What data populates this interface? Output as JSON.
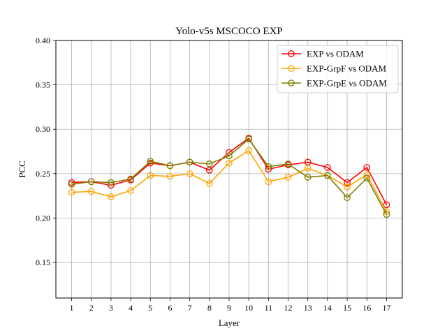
{
  "chart_data": {
    "type": "line",
    "title": "Yolo-v5s MSCOCO EXP",
    "xlabel": "Layer",
    "ylabel": "PCC",
    "x": [
      1,
      2,
      3,
      4,
      5,
      6,
      7,
      8,
      9,
      10,
      11,
      12,
      13,
      14,
      15,
      16,
      17
    ],
    "xlim": [
      0.2,
      17.8
    ],
    "ylim": [
      0.11,
      0.4
    ],
    "yticks": [
      "0.15",
      "0.20",
      "0.25",
      "0.30",
      "0.35",
      "0.40"
    ],
    "xticks": [
      "1",
      "2",
      "3",
      "4",
      "5",
      "6",
      "7",
      "8",
      "9",
      "10",
      "11",
      "12",
      "13",
      "14",
      "15",
      "16",
      "17"
    ],
    "grid": true,
    "legend_position": "top-right",
    "series": [
      {
        "name": "EXP vs ODAM",
        "color": "#ff0000",
        "values": [
          0.24,
          0.241,
          0.237,
          0.243,
          0.262,
          0.259,
          0.263,
          0.254,
          0.274,
          0.29,
          0.255,
          0.26,
          0.263,
          0.257,
          0.24,
          0.257,
          0.215
        ]
      },
      {
        "name": "EXP-GrpF vs ODAM",
        "color": "#ffa500",
        "values": [
          0.229,
          0.23,
          0.224,
          0.231,
          0.248,
          0.247,
          0.25,
          0.239,
          0.262,
          0.276,
          0.241,
          0.246,
          0.256,
          0.248,
          0.235,
          0.249,
          0.207
        ]
      },
      {
        "name": "EXP-GrpE vs ODAM",
        "color": "#808000",
        "values": [
          0.238,
          0.241,
          0.24,
          0.244,
          0.264,
          0.259,
          0.263,
          0.261,
          0.27,
          0.289,
          0.258,
          0.261,
          0.246,
          0.248,
          0.223,
          0.245,
          0.204
        ]
      }
    ]
  }
}
